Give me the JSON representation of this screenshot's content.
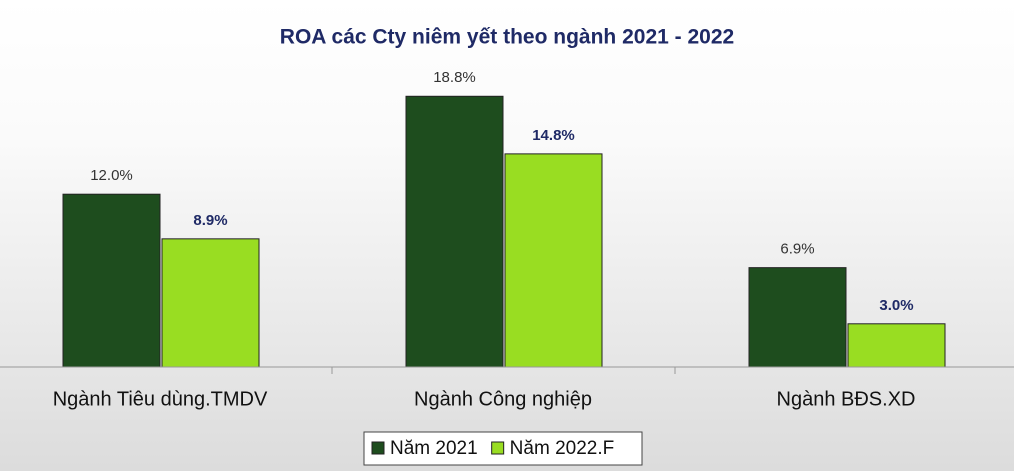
{
  "chart_data": {
    "type": "bar",
    "title": "ROA các Cty niêm yết theo ngành 2021 - 2022",
    "categories": [
      "Ngành Tiêu dùng.TMDV",
      "Ngành Công nghiệp",
      "Ngành BĐS.XD"
    ],
    "series": [
      {
        "name": "Năm 2021",
        "color": "#1e4d1e",
        "values": [
          12.0,
          18.8,
          6.9
        ],
        "value_labels": [
          "12.0%",
          "18.8%",
          "6.9%"
        ]
      },
      {
        "name": "Năm 2022.F",
        "color": "#99dd22",
        "values": [
          8.9,
          14.8,
          3.0
        ],
        "value_labels": [
          "8.9%",
          "14.8%",
          "3.0%"
        ]
      }
    ],
    "ylim": [
      0,
      20
    ],
    "legend": "bottom"
  }
}
